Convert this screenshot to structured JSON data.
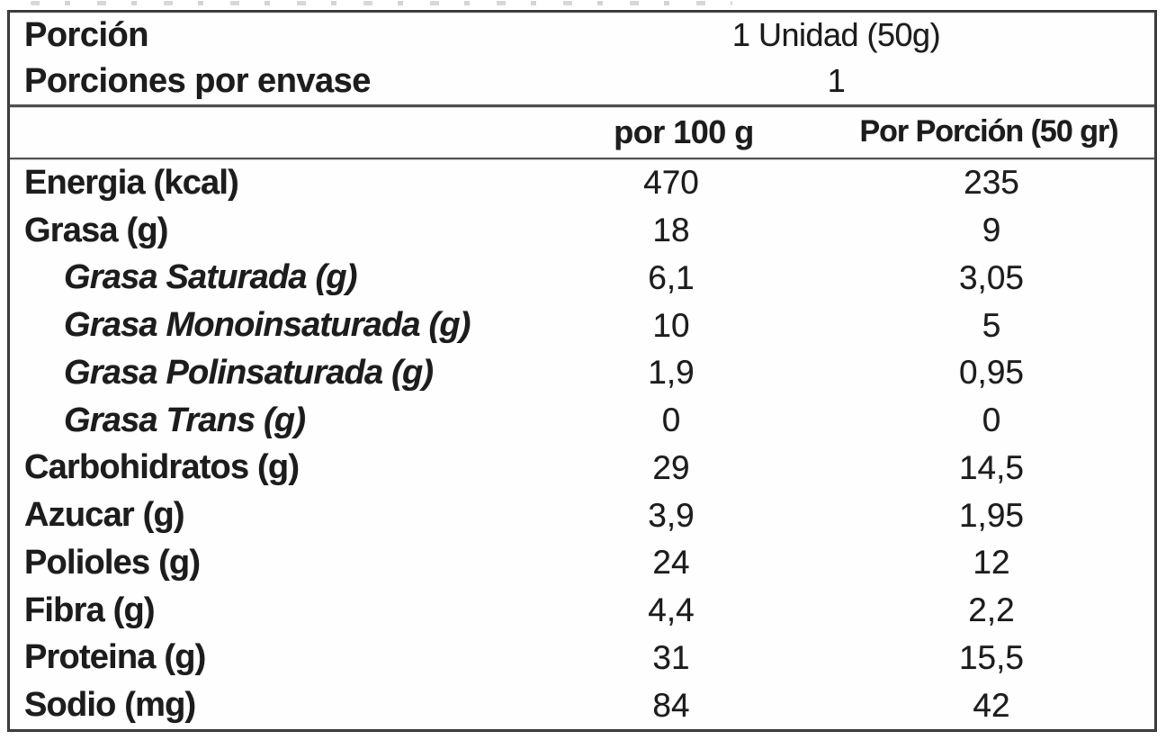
{
  "nutrition_label": {
    "serving_info": [
      {
        "label": "Porción",
        "value": "1 Unidad (50g)"
      },
      {
        "label": "Porciones por envase",
        "value": "1"
      }
    ],
    "column_headers": {
      "per_100g": "por 100 g",
      "per_portion": "Por Porción (50 gr)"
    },
    "nutrients": [
      {
        "label": "Energia (kcal)",
        "per_100g": "470",
        "per_portion": "235",
        "indent": false
      },
      {
        "label": "Grasa (g)",
        "per_100g": "18",
        "per_portion": "9",
        "indent": false
      },
      {
        "label": "Grasa Saturada (g)",
        "per_100g": "6,1",
        "per_portion": "3,05",
        "indent": true
      },
      {
        "label": "Grasa Monoinsaturada (g)",
        "per_100g": "10",
        "per_portion": "5",
        "indent": true
      },
      {
        "label": "Grasa Polinsaturada (g)",
        "per_100g": "1,9",
        "per_portion": "0,95",
        "indent": true
      },
      {
        "label": "Grasa Trans (g)",
        "per_100g": "0",
        "per_portion": "0",
        "indent": true
      },
      {
        "label": "Carbohidratos (g)",
        "per_100g": "29",
        "per_portion": "14,5",
        "indent": false
      },
      {
        "label": "Azucar (g)",
        "per_100g": "3,9",
        "per_portion": "1,95",
        "indent": false
      },
      {
        "label": "Polioles (g)",
        "per_100g": "24",
        "per_portion": "12",
        "indent": false
      },
      {
        "label": "Fibra (g)",
        "per_100g": "4,4",
        "per_portion": "2,2",
        "indent": false
      },
      {
        "label": "Proteina (g)",
        "per_100g": "31",
        "per_portion": "15,5",
        "indent": false
      },
      {
        "label": "Sodio (mg)",
        "per_100g": "84",
        "per_portion": "42",
        "indent": false
      }
    ],
    "colors": {
      "text": "#1c1c1c",
      "border": "#3e3e3e",
      "background": "#ffffff"
    }
  }
}
